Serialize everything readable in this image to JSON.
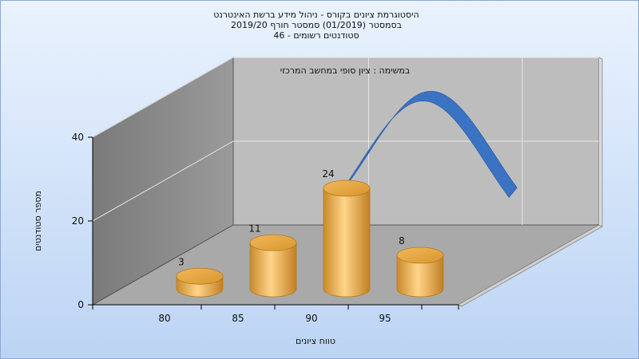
{
  "header": {
    "title_line1": "היסטוגרמת ציונים בקורס - ניהול מידע ברשת האינטרנט",
    "title_line2": "בסמסטר  (01/2019)  סמסטר חורף 2019/20",
    "title_line3": "סטודנטים רשומים - 46"
  },
  "chart_data": {
    "type": "bar",
    "title": "היסטוגרמת ציונים בקורס - ניהול מידע ברשת האינטרנט",
    "subtitle": "במשימה : ציון סופי במחשב המרכזי",
    "xlabel": "טווח ציונים",
    "ylabel": "מספר סטודנטים",
    "categories": [
      "80",
      "85",
      "90",
      "95"
    ],
    "values": [
      3,
      11,
      24,
      8
    ],
    "yticks": [
      0,
      20,
      40
    ],
    "ylim": [
      0,
      40
    ],
    "curve": {
      "mean": 94,
      "peak": 38,
      "sd": 5.5,
      "x_range": [
        78,
        101
      ]
    },
    "colors": {
      "bar": "#e8a94a",
      "curve": "#3a72c2",
      "floor": "#a8a8a8",
      "back_wall": "#bdbdbd",
      "side_wall": "#8c8c8c",
      "background_top": "#e9f2fd",
      "background_bottom": "#bcd4f4"
    }
  }
}
